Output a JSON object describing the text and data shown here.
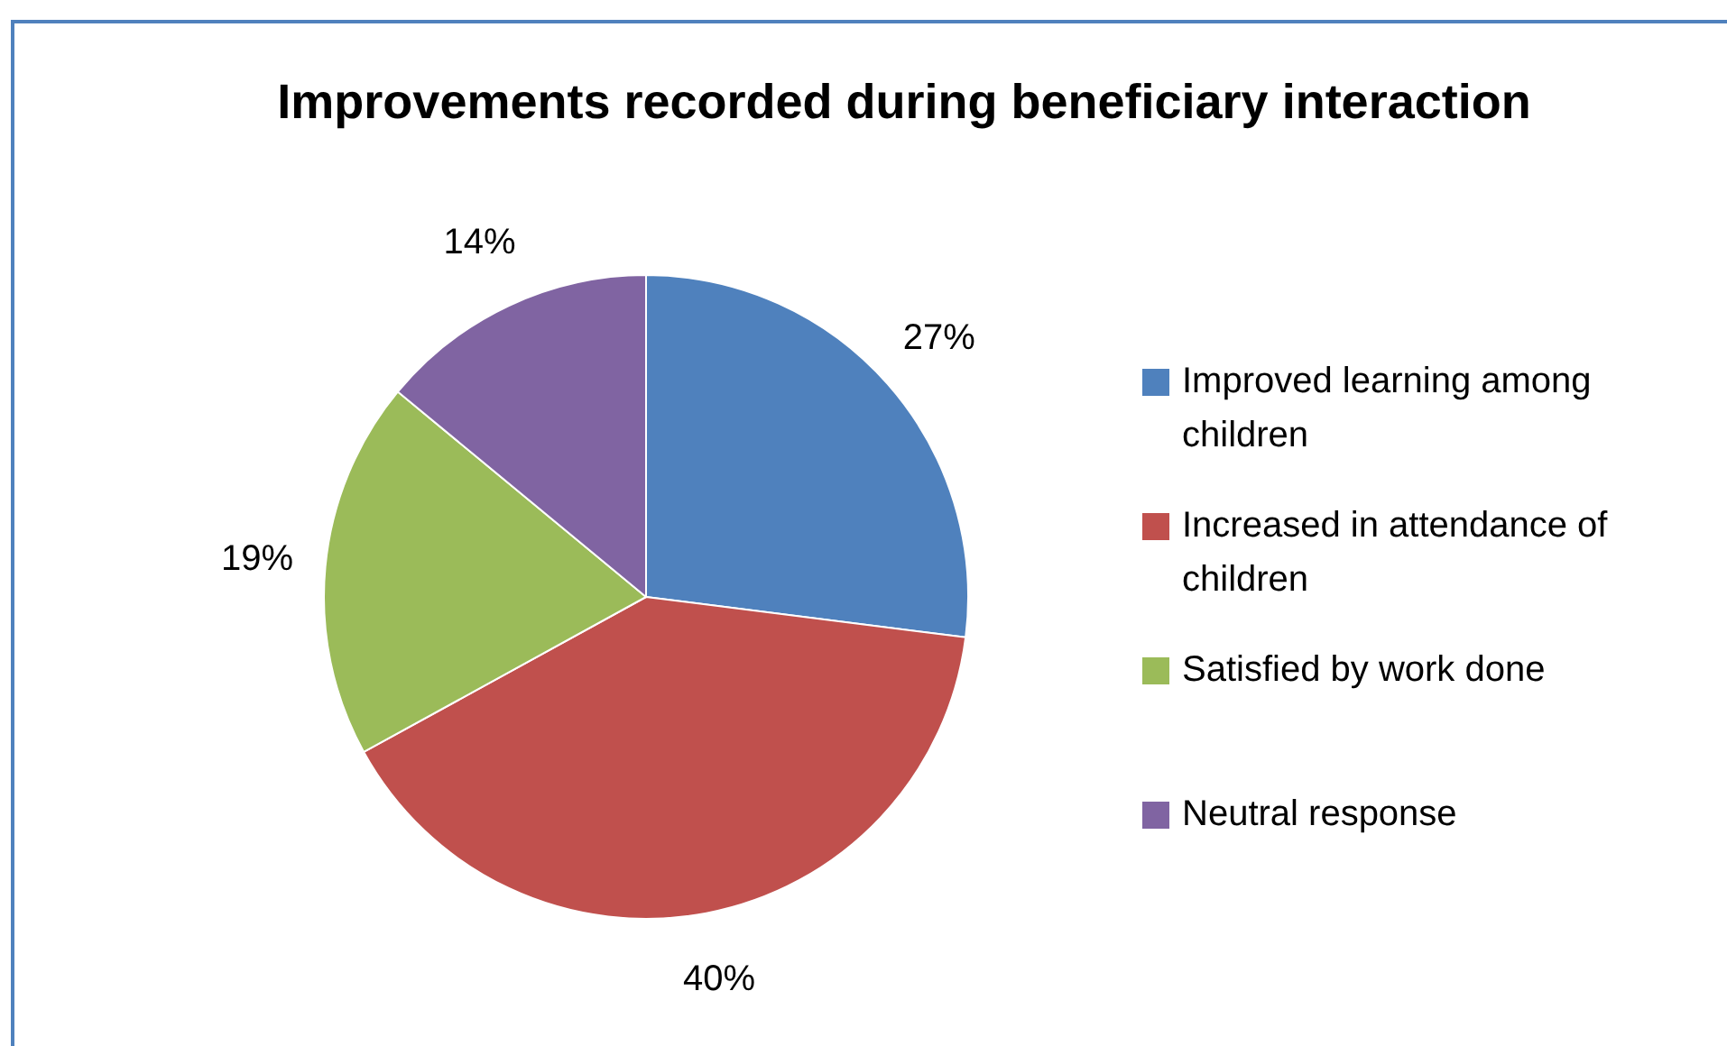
{
  "chart_data": {
    "type": "pie",
    "title": "Improvements recorded during beneficiary interaction",
    "categories": [
      "Improved learning among children",
      "Increased in attendance of children",
      "Satisfied by work done",
      "Neutral response"
    ],
    "values": [
      27,
      40,
      19,
      14
    ],
    "colors": [
      "#4f81bd",
      "#c0504d",
      "#9bbb59",
      "#8064a2"
    ],
    "value_labels": [
      "27%",
      "40%",
      "19%",
      "14%"
    ],
    "legend": "right"
  }
}
